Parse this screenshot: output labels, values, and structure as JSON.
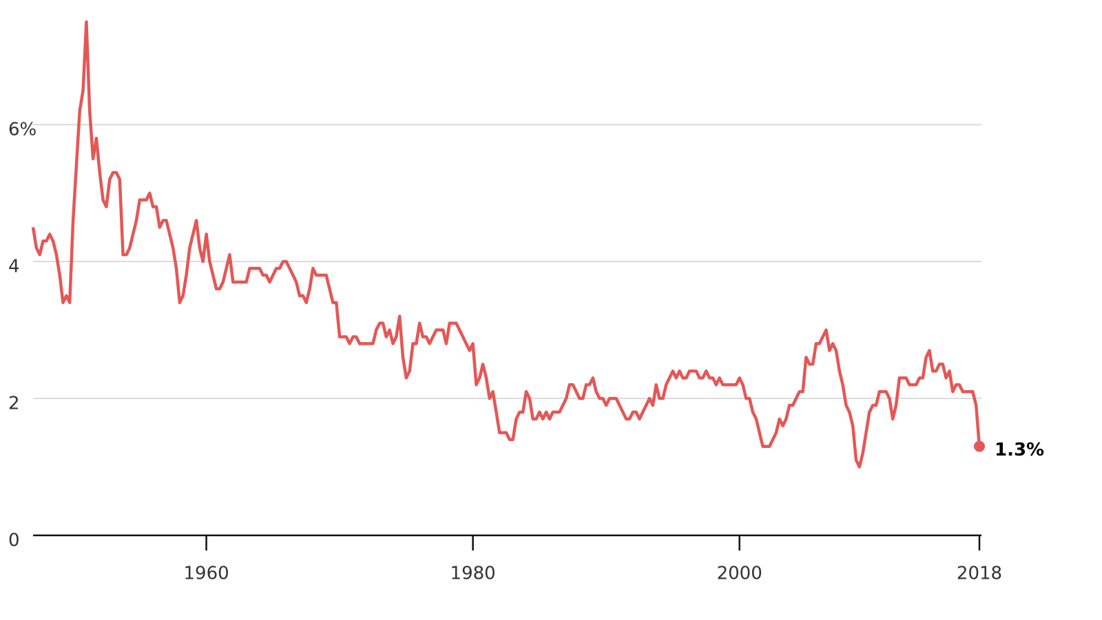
{
  "chart_data": {
    "type": "line",
    "color": "#e45756",
    "x": [
      1947,
      1947.25,
      1947.5,
      1947.75,
      1948,
      1948.25,
      1948.5,
      1948.75,
      1949,
      1949.25,
      1949.5,
      1949.75,
      1950,
      1950.25,
      1950.5,
      1950.75,
      1951,
      1951.25,
      1951.5,
      1951.75,
      1952,
      1952.25,
      1952.5,
      1952.75,
      1953,
      1953.25,
      1953.5,
      1953.75,
      1954,
      1954.25,
      1954.5,
      1954.75,
      1955,
      1955.5,
      1955.75,
      1956,
      1956.25,
      1956.5,
      1956.75,
      1957,
      1957.25,
      1957.5,
      1957.75,
      1958,
      1958.25,
      1958.5,
      1958.75,
      1959,
      1959.25,
      1959.5,
      1959.75,
      1960,
      1960.25,
      1960.5,
      1960.75,
      1961,
      1961.25,
      1961.5,
      1961.75,
      1962,
      1963,
      1963.25,
      1964,
      1964.25,
      1964.5,
      1964.75,
      1965.25,
      1965.5,
      1965.75,
      1966,
      1966.5,
      1966.75,
      1967,
      1967.25,
      1967.5,
      1967.75,
      1968,
      1968.25,
      1969,
      1969.5,
      1969.75,
      1970,
      1970.5,
      1970.75,
      1971,
      1971.25,
      1971.5,
      1972.5,
      1972.75,
      1973,
      1973.25,
      1973.5,
      1973.75,
      1974,
      1974.25,
      1974.5,
      1974.75,
      1975,
      1975.25,
      1975.5,
      1975.75,
      1976,
      1976.25,
      1976.5,
      1976.75,
      1977.25,
      1977.75,
      1978,
      1978.25,
      1978.75,
      1979.75,
      1980,
      1980.25,
      1980.5,
      1980.75,
      1981,
      1981.25,
      1981.5,
      1981.75,
      1982,
      1982.5,
      1982.75,
      1983,
      1983.25,
      1983.5,
      1983.75,
      1984,
      1984.25,
      1984.5,
      1984.75,
      1985,
      1985.25,
      1985.5,
      1985.75,
      1986,
      1986.5,
      1987,
      1987.25,
      1987.5,
      1988,
      1988.25,
      1988.5,
      1988.75,
      1989,
      1989.25,
      1989.5,
      1989.75,
      1990,
      1990.25,
      1990.75,
      1991.25,
      1991.5,
      1991.75,
      1992,
      1992.25,
      1992.5,
      1993.25,
      1993.5,
      1993.75,
      1994,
      1994.25,
      1994.5,
      1995,
      1995.25,
      1995.5,
      1995.75,
      1996,
      1996.25,
      1996.75,
      1997,
      1997.25,
      1997.5,
      1997.75,
      1998,
      1998.25,
      1998.5,
      1998.75,
      1999.75,
      2000,
      2000.25,
      2000.5,
      2000.75,
      2001,
      2001.25,
      2001.75,
      2002.25,
      2002.75,
      2003,
      2003.25,
      2003.5,
      2003.75,
      2004,
      2004.25,
      2004.5,
      2004.75,
      2005,
      2005.25,
      2005.5,
      2005.75,
      2006,
      2006.5,
      2006.75,
      2007,
      2007.25,
      2007.5,
      2007.75,
      2008,
      2008.25,
      2008.5,
      2008.75,
      2009,
      2009.25,
      2009.5,
      2009.75,
      2010,
      2010.25,
      2010.5,
      2011,
      2011.25,
      2011.5,
      2011.75,
      2012,
      2012.5,
      2012.75,
      2013.25,
      2013.5,
      2013.75,
      2014,
      2014.25,
      2014.5,
      2014.75,
      2015,
      2015.25,
      2015.5,
      2015.75,
      2016,
      2016.25,
      2016.5,
      2016.75,
      2017.5,
      2017.75,
      2018
    ],
    "values": [
      4.5,
      4.2,
      4.1,
      4.3,
      4.3,
      4.4,
      4.3,
      4.1,
      3.8,
      3.4,
      3.5,
      3.4,
      4.6,
      5.4,
      6.2,
      6.5,
      7.5,
      6.2,
      5.5,
      5.8,
      5.3,
      4.9,
      4.8,
      5.2,
      5.3,
      5.3,
      5.2,
      4.1,
      4.1,
      4.2,
      4.4,
      4.6,
      4.9,
      4.9,
      5.0,
      4.8,
      4.8,
      4.5,
      4.6,
      4.6,
      4.4,
      4.2,
      3.9,
      3.4,
      3.5,
      3.8,
      4.2,
      4.4,
      4.6,
      4.2,
      4.0,
      4.4,
      4.0,
      3.8,
      3.6,
      3.6,
      3.7,
      3.9,
      4.1,
      3.7,
      3.7,
      3.9,
      3.9,
      3.8,
      3.8,
      3.7,
      3.9,
      3.9,
      4.0,
      4.0,
      3.8,
      3.7,
      3.5,
      3.5,
      3.4,
      3.6,
      3.9,
      3.8,
      3.8,
      3.4,
      3.4,
      2.9,
      2.9,
      2.8,
      2.9,
      2.9,
      2.8,
      2.8,
      3.0,
      3.1,
      3.1,
      2.9,
      3.0,
      2.8,
      2.9,
      3.2,
      2.6,
      2.3,
      2.4,
      2.8,
      2.8,
      3.1,
      2.9,
      2.9,
      2.8,
      3.0,
      3.0,
      2.8,
      3.1,
      3.1,
      2.7,
      2.8,
      2.2,
      2.3,
      2.5,
      2.3,
      2.0,
      2.1,
      1.8,
      1.5,
      1.5,
      1.4,
      1.4,
      1.7,
      1.8,
      1.8,
      2.1,
      2.0,
      1.7,
      1.7,
      1.8,
      1.7,
      1.8,
      1.7,
      1.8,
      1.8,
      2.0,
      2.2,
      2.2,
      2.0,
      2.0,
      2.2,
      2.2,
      2.3,
      2.1,
      2.0,
      2.0,
      1.9,
      2.0,
      2.0,
      1.8,
      1.7,
      1.7,
      1.8,
      1.8,
      1.7,
      2.0,
      1.9,
      2.2,
      2.0,
      2.0,
      2.2,
      2.4,
      2.3,
      2.4,
      2.3,
      2.3,
      2.4,
      2.4,
      2.3,
      2.3,
      2.4,
      2.3,
      2.3,
      2.2,
      2.3,
      2.2,
      2.2,
      2.3,
      2.2,
      2.0,
      2.0,
      1.8,
      1.7,
      1.3,
      1.3,
      1.5,
      1.7,
      1.6,
      1.7,
      1.9,
      1.9,
      2.0,
      2.1,
      2.1,
      2.6,
      2.5,
      2.5,
      2.8,
      2.8,
      3.0,
      2.7,
      2.8,
      2.7,
      2.4,
      2.2,
      1.9,
      1.8,
      1.6,
      1.1,
      1.0,
      1.2,
      1.5,
      1.8,
      1.9,
      1.9,
      2.1,
      2.1,
      2.0,
      1.7,
      1.9,
      2.3,
      2.3,
      2.2,
      2.2,
      2.3,
      2.3,
      2.6,
      2.7,
      2.4,
      2.4,
      2.5,
      2.5,
      2.3,
      2.4,
      2.1,
      2.2,
      2.2,
      2.1,
      2.1,
      1.9,
      1.3
    ],
    "last_label": "1.3%",
    "xlim": [
      1947,
      2018
    ],
    "xticks": [
      1960,
      1980,
      2000,
      2018
    ],
    "ylim": [
      0,
      7.8
    ],
    "yticks": [
      0,
      2,
      4,
      {
        "value": 6,
        "label": "6%"
      }
    ],
    "grid": true
  }
}
